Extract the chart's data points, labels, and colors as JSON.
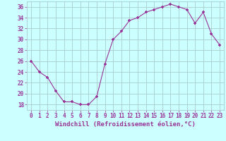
{
  "hours": [
    0,
    1,
    2,
    3,
    4,
    5,
    6,
    7,
    8,
    9,
    10,
    11,
    12,
    13,
    14,
    15,
    16,
    17,
    18,
    19,
    20,
    21,
    22,
    23
  ],
  "values": [
    26,
    24,
    23,
    20.5,
    18.5,
    18.5,
    18,
    18,
    19.5,
    25.5,
    30,
    31.5,
    33.5,
    34,
    35,
    35.5,
    36,
    36.5,
    36,
    35.5,
    33,
    35,
    31,
    29
  ],
  "line_color": "#993399",
  "marker": "+",
  "bg_color": "#ccffff",
  "grid_color": "#aacccc",
  "xlabel": "Windchill (Refroidissement éolien,°C)",
  "ylim": [
    17,
    37
  ],
  "yticks": [
    18,
    20,
    22,
    24,
    26,
    28,
    30,
    32,
    34,
    36
  ],
  "xtick_labels": [
    "0",
    "1",
    "2",
    "3",
    "4",
    "5",
    "6",
    "7",
    "8",
    "9",
    "10",
    "11",
    "12",
    "13",
    "14",
    "15",
    "16",
    "17",
    "18",
    "19",
    "20",
    "21",
    "22",
    "23"
  ],
  "tick_fontsize": 5.5,
  "label_fontsize": 6.5
}
